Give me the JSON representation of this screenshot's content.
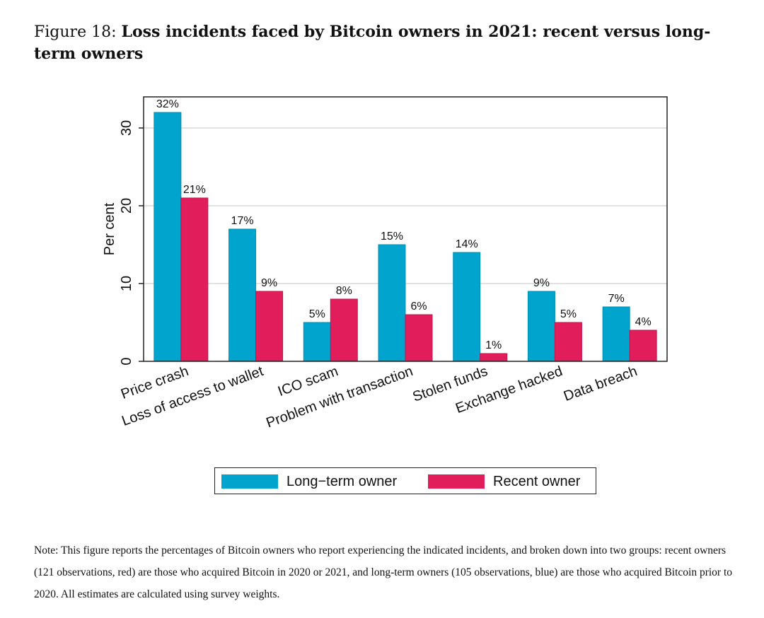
{
  "caption": {
    "label": "Figure 18:",
    "title": "Loss incidents faced by Bitcoin owners in 2021: recent versus long-term owners"
  },
  "colors": {
    "long_term": "#00a4cc",
    "recent": "#e21d5c",
    "grid": "#d9d9d9",
    "axis": "#222222"
  },
  "chart_data": {
    "type": "bar",
    "title": "",
    "xlabel": "",
    "ylabel": "Per cent",
    "ylim": [
      0,
      34
    ],
    "yticks": [
      0,
      10,
      20,
      30
    ],
    "grid": true,
    "legend_position": "bottom",
    "categories": [
      "Price crash",
      "Loss of access to wallet",
      "ICO scam",
      "Problem with transaction",
      "Stolen funds",
      "Exchange hacked",
      "Data breach"
    ],
    "series": [
      {
        "name": "Long−term owner",
        "values": [
          32,
          17,
          5,
          15,
          14,
          9,
          7
        ],
        "labels": [
          "32%",
          "17%",
          "5%",
          "15%",
          "14%",
          "9%",
          "7%"
        ]
      },
      {
        "name": "Recent owner",
        "values": [
          21,
          9,
          8,
          6,
          1,
          5,
          4
        ],
        "labels": [
          "21%",
          "9%",
          "8%",
          "6%",
          "1%",
          "5%",
          "4%"
        ]
      }
    ]
  },
  "note": "Note: This figure reports the percentages of Bitcoin owners who report experiencing the indicated incidents, and broken down into two groups: recent owners (121 observations, red) are those who acquired Bitcoin in 2020 or 2021, and long-term owners (105 observations, blue) are those who acquired Bitcoin prior to 2020. All estimates are calculated using survey weights."
}
